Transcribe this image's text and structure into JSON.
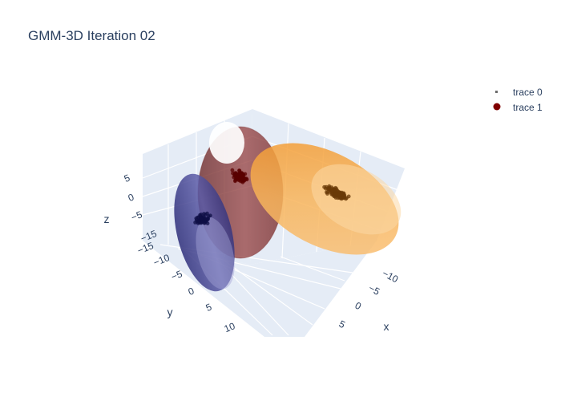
{
  "chart_data": {
    "type": "scatter3d",
    "title": "GMM-3D Iteration 02",
    "axes": {
      "x": {
        "label": "x",
        "ticks": [
          "−10",
          "−5",
          "0",
          "5"
        ]
      },
      "y": {
        "label": "y",
        "ticks": [
          "−15",
          "−10",
          "−5",
          "0",
          "5",
          "10"
        ]
      },
      "z": {
        "label": "z",
        "ticks": [
          "5",
          "0",
          "−5",
          "−15"
        ]
      }
    },
    "legend": {
      "placement": "top-right",
      "entries": [
        {
          "name": "trace 0",
          "marker": "small-square",
          "color": "#6b6b6b"
        },
        {
          "name": "trace 1",
          "marker": "circle",
          "color": "#800000"
        }
      ]
    },
    "clusters": [
      {
        "color": "#8a3b3b",
        "point_color": "#5a0000",
        "surface_opacity": 0.7,
        "points": 90
      },
      {
        "color": "#f6a53a",
        "point_color": "#6b3b08",
        "surface_opacity": 0.6,
        "points": 100
      },
      {
        "color": "#3c3c8c",
        "point_color": "#0f0f45",
        "surface_opacity": 0.65,
        "points": 60
      }
    ],
    "grid": true,
    "background": "#e5ecf6"
  }
}
